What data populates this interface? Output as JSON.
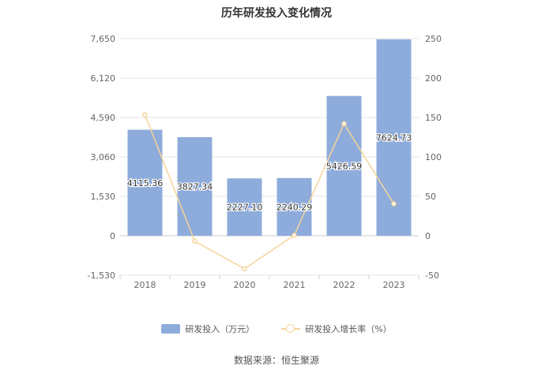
{
  "chart_data": {
    "type": "bar",
    "title": "历年研发投入变化情况",
    "categories": [
      "2018",
      "2019",
      "2020",
      "2021",
      "2022",
      "2023"
    ],
    "series": [
      {
        "name": "研发投入（万元）",
        "type": "bar",
        "axis": "left",
        "values": [
          4115.36,
          3827.34,
          2227.1,
          2240.29,
          5426.59,
          7624.73
        ],
        "labels": [
          "4115.36",
          "3827.34",
          "2227.10",
          "2240.29",
          "5426.59",
          "7624.73"
        ],
        "color": "#8eacdb"
      },
      {
        "name": "研发投入增长率（%）",
        "type": "line",
        "axis": "right",
        "values": [
          153.5,
          -7.0,
          -41.8,
          0.6,
          142.2,
          40.5
        ],
        "color": "#f6d49a"
      }
    ],
    "y_left": {
      "ticks": [
        -1530,
        0,
        1530,
        3060,
        4590,
        6120,
        7650
      ],
      "tick_labels": [
        "-1,530",
        "0",
        "1,530",
        "3,060",
        "4,590",
        "6,120",
        "7,650"
      ],
      "ylim": [
        -1530,
        7650
      ]
    },
    "y_right": {
      "ticks": [
        -50,
        0,
        50,
        100,
        150,
        200,
        250
      ],
      "tick_labels": [
        "-50",
        "0",
        "50",
        "100",
        "150",
        "200",
        "250"
      ],
      "ylim": [
        -50,
        250
      ]
    },
    "grid": true,
    "legend_position": "bottom"
  },
  "source": "数据来源：恒生聚源"
}
